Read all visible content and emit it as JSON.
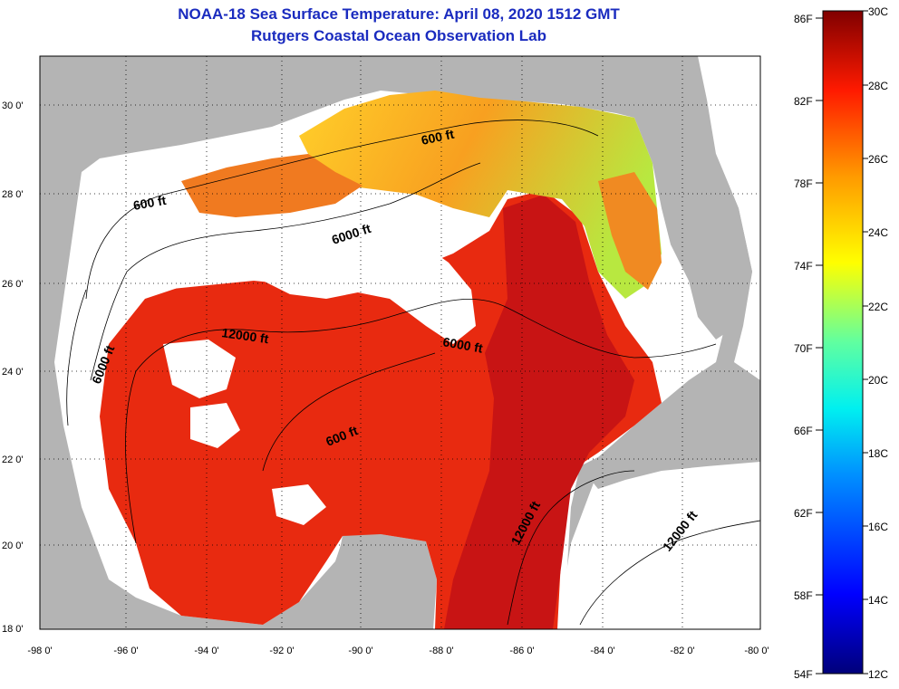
{
  "title": {
    "line1": "NOAA-18 Sea Surface Temperature:  April 08, 2020 1512 GMT",
    "line2": "Rutgers Coastal Ocean Observation Lab"
  },
  "map": {
    "lat_labels": [
      "30 0'",
      "28 0'",
      "26 0'",
      "24 0'",
      "22 0'",
      "20 0'",
      "18 0'"
    ],
    "lon_labels": [
      "-98 0'",
      "-96 0'",
      "-94 0'",
      "-92 0'",
      "-90 0'",
      "-88 0'",
      "-86 0'",
      "-84 0'",
      "-82 0'",
      "-80 0'"
    ],
    "contour_labels": [
      {
        "id": "c1",
        "text": "600 ft"
      },
      {
        "id": "c2",
        "text": "600 ft"
      },
      {
        "id": "c3",
        "text": "6000 ft"
      },
      {
        "id": "c4",
        "text": "12000 ft"
      },
      {
        "id": "c5",
        "text": "6000 ft"
      },
      {
        "id": "c6",
        "text": "6000 ft"
      },
      {
        "id": "c7",
        "text": "600 ft"
      },
      {
        "id": "c8",
        "text": "12000 ft"
      },
      {
        "id": "c9",
        "text": "12000 ft"
      }
    ],
    "colors": {
      "land": "#b4b4b4",
      "cloud": "#ffffff",
      "warm": "#e82a10",
      "hot": "#c81414"
    }
  },
  "colorbar": {
    "fahrenheit": [
      "86F",
      "82F",
      "78F",
      "74F",
      "70F",
      "66F",
      "62F",
      "58F",
      "54F"
    ],
    "celsius": [
      "30C",
      "28C",
      "26C",
      "24C",
      "22C",
      "20C",
      "18C",
      "16C",
      "14C",
      "12C"
    ]
  }
}
